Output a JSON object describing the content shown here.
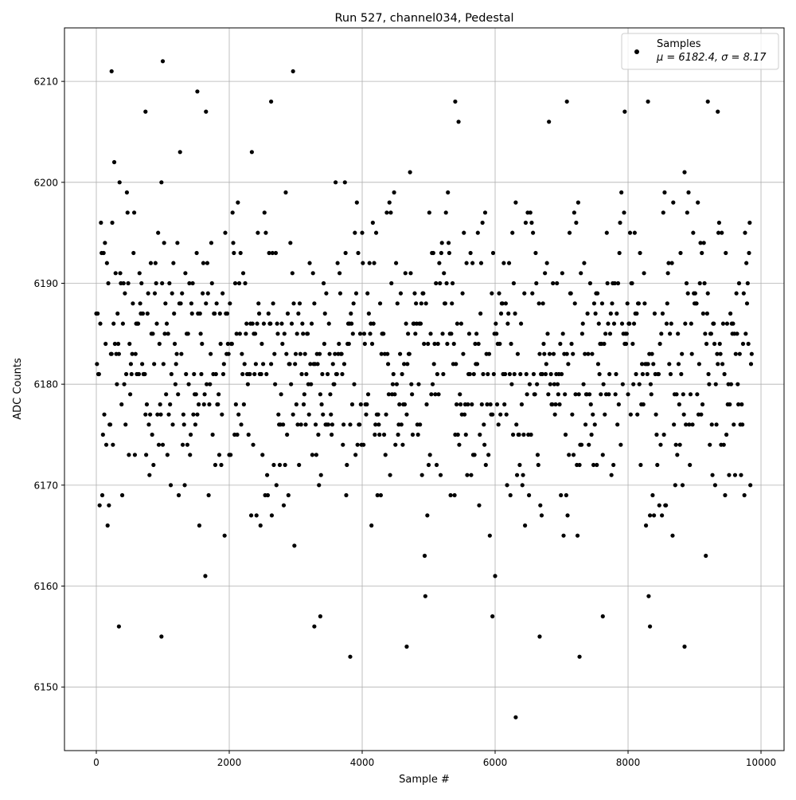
{
  "chart_data": {
    "type": "scatter",
    "title": "Run 527, channel034, Pedestal",
    "xlabel": "Sample #",
    "ylabel": "ADC Counts",
    "xlim": [
      -479,
      10347
    ],
    "ylim": [
      6143.7,
      6215.3
    ],
    "xticks": [
      0,
      2000,
      4000,
      6000,
      8000,
      10000
    ],
    "yticks": [
      6150,
      6160,
      6170,
      6180,
      6190,
      6200,
      6210
    ],
    "grid": true,
    "legend_position": "top-right",
    "marker_color": "#000000",
    "series": [
      {
        "name": "Samples",
        "stats_label": "μ = 6182.4, σ = 8.17",
        "mean": 6182.4,
        "sigma": 8.17,
        "x_range": [
          0,
          9860
        ],
        "integer_values": true,
        "notable_points": [
          {
            "x": 230,
            "y": 6211
          },
          {
            "x": 1000,
            "y": 6212
          },
          {
            "x": 1520,
            "y": 6209
          },
          {
            "x": 2960,
            "y": 6211
          },
          {
            "x": 6310,
            "y": 6147
          },
          {
            "x": 3820,
            "y": 6153
          },
          {
            "x": 7270,
            "y": 6153
          },
          {
            "x": 8850,
            "y": 6154
          },
          {
            "x": 980,
            "y": 6155
          },
          {
            "x": 340,
            "y": 6156
          },
          {
            "x": 4670,
            "y": 6154
          },
          {
            "x": 6670,
            "y": 6155
          },
          {
            "x": 3280,
            "y": 6156
          },
          {
            "x": 8330,
            "y": 6156
          },
          {
            "x": 3370,
            "y": 6157
          },
          {
            "x": 5960,
            "y": 6157
          },
          {
            "x": 7620,
            "y": 6157
          },
          {
            "x": 1650,
            "y": 6207
          },
          {
            "x": 2630,
            "y": 6208
          },
          {
            "x": 5400,
            "y": 6208
          },
          {
            "x": 7080,
            "y": 6208
          },
          {
            "x": 8300,
            "y": 6208
          },
          {
            "x": 9200,
            "y": 6208
          },
          {
            "x": 740,
            "y": 6207
          },
          {
            "x": 9350,
            "y": 6207
          },
          {
            "x": 7950,
            "y": 6207
          }
        ]
      }
    ]
  }
}
